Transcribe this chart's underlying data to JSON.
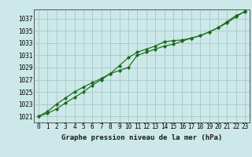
{
  "title": "Graphe pression niveau de la mer (hPa)",
  "bg_color": "#cce8e8",
  "grid_color": "#aacccc",
  "line_color": "#1a6b1a",
  "x_labels": [
    "0",
    "1",
    "2",
    "3",
    "4",
    "5",
    "6",
    "7",
    "8",
    "9",
    "10",
    "11",
    "12",
    "13",
    "14",
    "15",
    "16",
    "17",
    "18",
    "19",
    "20",
    "21",
    "22",
    "23"
  ],
  "ylim": [
    1020.0,
    1038.5
  ],
  "yticks": [
    1021,
    1023,
    1025,
    1027,
    1029,
    1031,
    1033,
    1035,
    1037
  ],
  "series1": [
    1021.0,
    1021.5,
    1022.2,
    1023.2,
    1024.1,
    1025.0,
    1026.1,
    1027.0,
    1028.0,
    1029.3,
    1030.6,
    1031.5,
    1032.0,
    1032.5,
    1033.2,
    1033.4,
    1033.5,
    1033.8,
    1034.2,
    1034.8,
    1035.5,
    1036.5,
    1037.5,
    1038.1
  ],
  "series2": [
    1021.0,
    1021.8,
    1023.0,
    1024.0,
    1025.0,
    1025.8,
    1026.5,
    1027.2,
    1028.0,
    1028.5,
    1029.0,
    1031.0,
    1031.5,
    1032.0,
    1032.5,
    1032.8,
    1033.3,
    1033.8,
    1034.2,
    1034.8,
    1035.5,
    1036.3,
    1037.3,
    1038.2
  ],
  "figsize": [
    3.2,
    2.0
  ],
  "dpi": 100,
  "tick_fontsize": 5.5,
  "label_fontsize": 6.5
}
